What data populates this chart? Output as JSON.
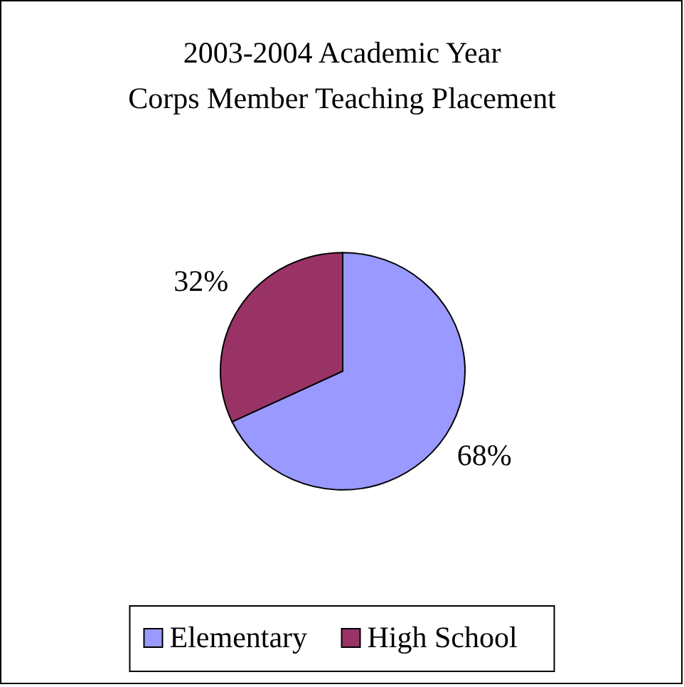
{
  "chart_data": {
    "type": "pie",
    "title": "2003-2004 Academic Year",
    "subtitle": "Corps Member Teaching Placement",
    "categories": [
      "Elementary",
      "High School"
    ],
    "values": [
      68,
      32
    ],
    "colors": [
      "#9999ff",
      "#993366"
    ],
    "value_labels": [
      "68%",
      "32%"
    ],
    "legend": "bottom"
  }
}
